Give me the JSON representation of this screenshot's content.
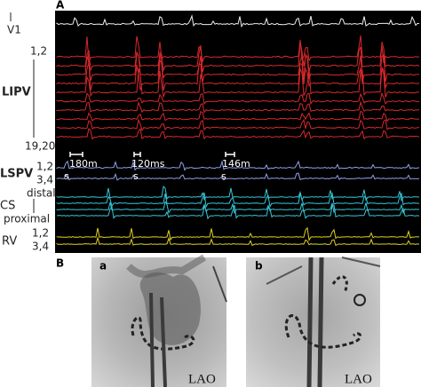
{
  "panel_a": {
    "label": "A",
    "leads": {
      "v1": "V1",
      "lipv_top": "1,2",
      "lipv": "LIPV",
      "lipv_bottom": "19,20",
      "lspv": "LSPV",
      "lspv_top": "1,2",
      "lspv_bottom": "3,4",
      "cs": "CS",
      "cs_top": "distal",
      "cs_bottom": "proximal",
      "rv": "RV",
      "rv_top": "1,2",
      "rv_bottom": "3,4"
    },
    "intervals": [
      {
        "label": "180m",
        "marker": "s"
      },
      {
        "label": "120ms",
        "marker": "s"
      },
      {
        "label": "146m",
        "marker": "s"
      }
    ]
  },
  "panel_b": {
    "label": "B",
    "images": [
      {
        "label": "a",
        "view": "LAO"
      },
      {
        "label": "b",
        "view": "LAO"
      }
    ]
  }
}
